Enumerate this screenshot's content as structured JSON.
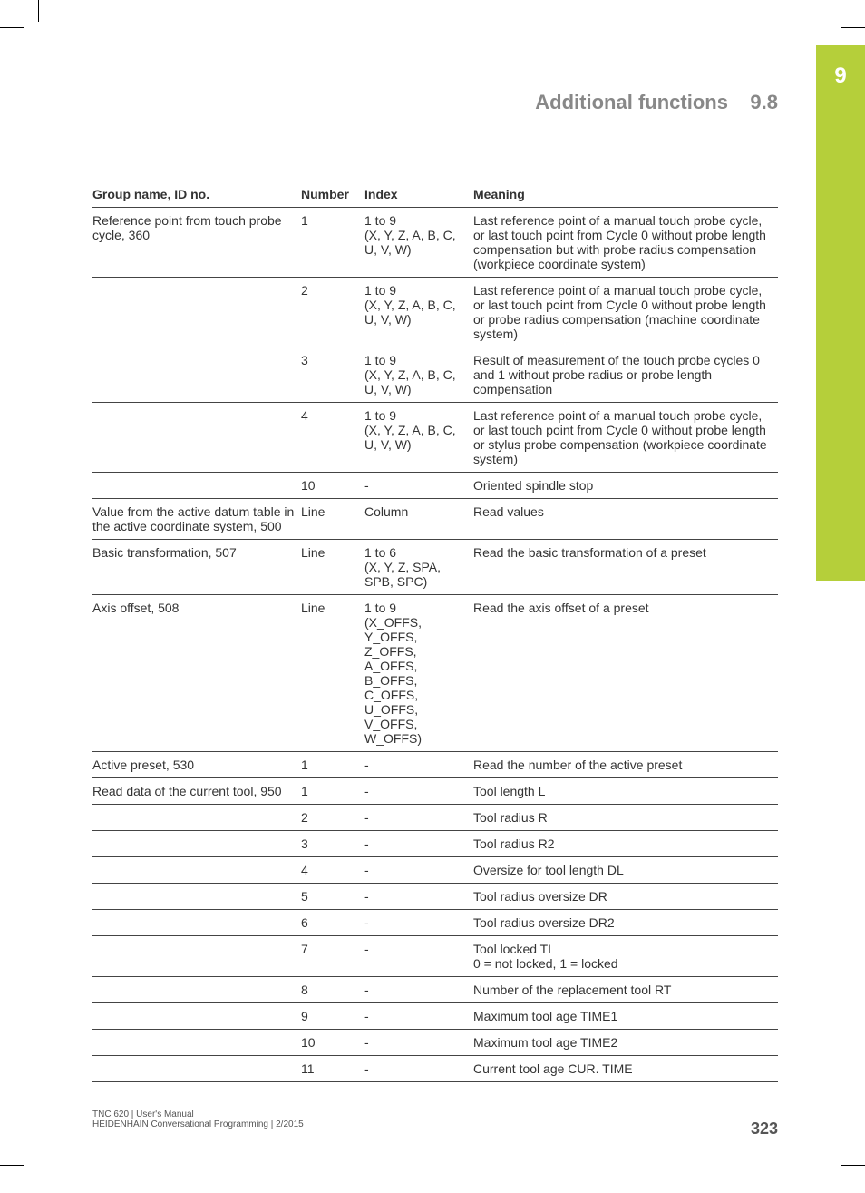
{
  "chapter_number": "9",
  "header": {
    "section_title": "Additional functions",
    "section_number": "9.8"
  },
  "table": {
    "headers": {
      "group": "Group name, ID no.",
      "number": "Number",
      "index": "Index",
      "meaning": "Meaning"
    },
    "rows": [
      {
        "group": "Reference point from touch probe cycle, 360",
        "number": "1",
        "index": "1 to 9\n(X, Y, Z, A, B, C, U, V, W)",
        "meaning": "Last reference point of a manual touch probe cycle, or last touch point from Cycle 0 without probe length compensation but with probe radius compensation (workpiece coordinate system)"
      },
      {
        "group": "",
        "number": "2",
        "index": "1 to 9\n(X, Y, Z, A, B, C, U, V, W)",
        "meaning": "Last reference point of a manual touch probe cycle, or last touch point from Cycle 0 without probe length or probe radius compensation (machine coordinate system)"
      },
      {
        "group": "",
        "number": "3",
        "index": "1 to 9\n(X, Y, Z, A, B, C, U, V, W)",
        "meaning": "Result of measurement of the touch probe cycles 0 and 1 without probe radius or probe length compensation"
      },
      {
        "group": "",
        "number": "4",
        "index": "1 to 9\n(X, Y, Z, A, B, C, U, V, W)",
        "meaning": "Last reference point of a manual touch probe cycle, or last touch point from Cycle 0 without probe length or stylus probe compensation (workpiece coordinate system)"
      },
      {
        "group": "",
        "number": "10",
        "index": "-",
        "meaning": "Oriented spindle stop"
      },
      {
        "group": "Value from the active datum table in the active coordinate system, 500",
        "number": "Line",
        "index": "Column",
        "meaning": "Read values"
      },
      {
        "group": "Basic transformation, 507",
        "number": "Line",
        "index": "1 to 6\n(X, Y, Z, SPA, SPB, SPC)",
        "meaning": "Read the basic transformation of a preset"
      },
      {
        "group": "Axis offset, 508",
        "number": "Line",
        "index": "1 to 9\n(X_OFFS, Y_OFFS, Z_OFFS, A_OFFS, B_OFFS, C_OFFS, U_OFFS, V_OFFS, W_OFFS)",
        "meaning": "Read the axis offset of a preset"
      },
      {
        "group": "Active preset, 530",
        "number": "1",
        "index": "-",
        "meaning": "Read the number of the active preset"
      },
      {
        "group": "Read data of the current tool, 950",
        "number": "1",
        "index": "-",
        "meaning": "Tool length L"
      },
      {
        "group": "",
        "number": "2",
        "index": "-",
        "meaning": "Tool radius R"
      },
      {
        "group": "",
        "number": "3",
        "index": "-",
        "meaning": "Tool radius R2"
      },
      {
        "group": "",
        "number": "4",
        "index": "-",
        "meaning": "Oversize for tool length DL"
      },
      {
        "group": "",
        "number": "5",
        "index": "-",
        "meaning": "Tool radius oversize DR"
      },
      {
        "group": "",
        "number": "6",
        "index": "-",
        "meaning": "Tool radius oversize DR2"
      },
      {
        "group": "",
        "number": "7",
        "index": "-",
        "meaning": "Tool locked TL\n0 = not locked, 1 = locked"
      },
      {
        "group": "",
        "number": "8",
        "index": "-",
        "meaning": "Number of the replacement tool RT"
      },
      {
        "group": "",
        "number": "9",
        "index": "-",
        "meaning": "Maximum tool age TIME1"
      },
      {
        "group": "",
        "number": "10",
        "index": "-",
        "meaning": "Maximum tool age TIME2"
      },
      {
        "group": "",
        "number": "11",
        "index": "-",
        "meaning": "Current tool age CUR. TIME"
      }
    ]
  },
  "footer": {
    "line1": "TNC 620 | User's Manual",
    "line2": "HEIDENHAIN Conversational Programming | 2/2015",
    "page": "323"
  }
}
